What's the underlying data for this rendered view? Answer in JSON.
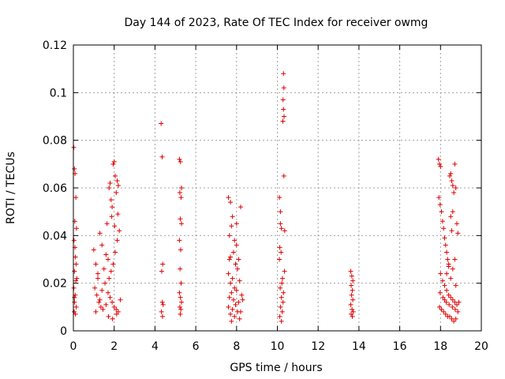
{
  "chart_data": {
    "type": "scatter",
    "title": "Day 144 of 2023, Rate Of TEC Index for receiver owmg",
    "xlabel": "GPS time / hours",
    "ylabel": "ROTI / TECUs",
    "xlim": [
      0,
      20
    ],
    "ylim": [
      0,
      0.12
    ],
    "xticks": [
      "0",
      "2",
      "4",
      "6",
      "8",
      "10",
      "12",
      "14",
      "16",
      "18",
      "20"
    ],
    "yticks": [
      "0",
      "0.02",
      "0.04",
      "0.06",
      "0.08",
      "0.1",
      "0.12"
    ],
    "grid": true,
    "marker": "+",
    "color": "#e00000",
    "series": [
      {
        "values": [
          [
            0.02,
            0.077
          ],
          [
            0.05,
            0.068
          ],
          [
            0.08,
            0.066
          ],
          [
            0.12,
            0.056
          ],
          [
            0.07,
            0.046
          ],
          [
            0.15,
            0.043
          ],
          [
            0.03,
            0.038
          ],
          [
            0.1,
            0.031
          ],
          [
            0.05,
            0.025
          ],
          [
            0.12,
            0.021
          ],
          [
            0.02,
            0.018
          ],
          [
            0.09,
            0.015
          ],
          [
            0.06,
            0.012
          ],
          [
            0.14,
            0.01
          ],
          [
            0.04,
            0.008
          ],
          [
            0.1,
            0.007
          ],
          [
            0.17,
            0.022
          ],
          [
            0.08,
            0.035
          ],
          [
            0.13,
            0.028
          ],
          [
            0.05,
            0.014
          ],
          [
            1.0,
            0.034
          ],
          [
            1.1,
            0.028
          ],
          [
            1.2,
            0.022
          ],
          [
            1.3,
            0.041
          ],
          [
            1.4,
            0.036
          ],
          [
            1.05,
            0.018
          ],
          [
            1.15,
            0.015
          ],
          [
            1.25,
            0.012
          ],
          [
            1.35,
            0.01
          ],
          [
            1.45,
            0.009
          ],
          [
            1.1,
            0.008
          ],
          [
            1.3,
            0.013
          ],
          [
            1.5,
            0.026
          ],
          [
            1.55,
            0.02
          ],
          [
            1.2,
            0.024
          ],
          [
            1.4,
            0.017
          ],
          [
            1.6,
            0.032
          ],
          [
            1.65,
            0.045
          ],
          [
            1.7,
            0.03
          ],
          [
            1.75,
            0.06
          ],
          [
            1.8,
            0.062
          ],
          [
            1.85,
            0.055
          ],
          [
            1.9,
            0.052
          ],
          [
            1.95,
            0.07
          ],
          [
            2.0,
            0.071
          ],
          [
            2.05,
            0.065
          ],
          [
            2.1,
            0.058
          ],
          [
            2.15,
            0.063
          ],
          [
            2.2,
            0.061
          ],
          [
            1.7,
            0.016
          ],
          [
            1.8,
            0.014
          ],
          [
            1.9,
            0.012
          ],
          [
            2.0,
            0.01
          ],
          [
            2.1,
            0.009
          ],
          [
            2.2,
            0.008
          ],
          [
            1.75,
            0.022
          ],
          [
            1.85,
            0.025
          ],
          [
            1.95,
            0.028
          ],
          [
            2.05,
            0.033
          ],
          [
            2.15,
            0.038
          ],
          [
            2.25,
            0.042
          ],
          [
            1.72,
            0.006
          ],
          [
            1.92,
            0.005
          ],
          [
            2.12,
            0.007
          ],
          [
            1.6,
            0.011
          ],
          [
            2.3,
            0.013
          ],
          [
            1.88,
            0.048
          ],
          [
            2.02,
            0.044
          ],
          [
            2.18,
            0.049
          ],
          [
            4.3,
            0.087
          ],
          [
            4.35,
            0.073
          ],
          [
            4.38,
            0.028
          ],
          [
            4.33,
            0.025
          ],
          [
            4.36,
            0.012
          ],
          [
            4.4,
            0.011
          ],
          [
            4.32,
            0.008
          ],
          [
            4.37,
            0.006
          ],
          [
            5.2,
            0.072
          ],
          [
            5.25,
            0.071
          ],
          [
            5.3,
            0.06
          ],
          [
            5.22,
            0.058
          ],
          [
            5.28,
            0.056
          ],
          [
            5.24,
            0.047
          ],
          [
            5.3,
            0.045
          ],
          [
            5.2,
            0.038
          ],
          [
            5.26,
            0.034
          ],
          [
            5.23,
            0.026
          ],
          [
            5.28,
            0.02
          ],
          [
            5.2,
            0.016
          ],
          [
            5.25,
            0.014
          ],
          [
            5.3,
            0.012
          ],
          [
            5.22,
            0.01
          ],
          [
            5.27,
            0.009
          ],
          [
            5.24,
            0.007
          ],
          [
            7.6,
            0.056
          ],
          [
            7.7,
            0.054
          ],
          [
            7.8,
            0.048
          ],
          [
            7.75,
            0.044
          ],
          [
            7.65,
            0.04
          ],
          [
            7.9,
            0.038
          ],
          [
            8.0,
            0.036
          ],
          [
            7.85,
            0.033
          ],
          [
            7.7,
            0.031
          ],
          [
            8.1,
            0.03
          ],
          [
            8.2,
            0.052
          ],
          [
            7.95,
            0.028
          ],
          [
            8.05,
            0.026
          ],
          [
            7.6,
            0.024
          ],
          [
            7.8,
            0.022
          ],
          [
            8.15,
            0.021
          ],
          [
            7.7,
            0.02
          ],
          [
            7.9,
            0.018
          ],
          [
            8.0,
            0.017
          ],
          [
            7.75,
            0.016
          ],
          [
            7.65,
            0.014
          ],
          [
            7.85,
            0.013
          ],
          [
            8.1,
            0.012
          ],
          [
            7.95,
            0.011
          ],
          [
            7.6,
            0.01
          ],
          [
            7.8,
            0.009
          ],
          [
            8.05,
            0.008
          ],
          [
            8.2,
            0.008
          ],
          [
            7.7,
            0.007
          ],
          [
            7.9,
            0.006
          ],
          [
            8.15,
            0.005
          ],
          [
            7.75,
            0.004
          ],
          [
            8.25,
            0.015
          ],
          [
            8.3,
            0.013
          ],
          [
            7.65,
            0.03
          ],
          [
            8.0,
            0.045
          ]
        ]
      },
      {
        "values": [
          [
            10.1,
            0.056
          ],
          [
            10.15,
            0.045
          ],
          [
            10.2,
            0.043
          ],
          [
            10.12,
            0.035
          ],
          [
            10.18,
            0.033
          ],
          [
            10.1,
            0.03
          ],
          [
            10.25,
            0.022
          ],
          [
            10.22,
            0.02
          ],
          [
            10.14,
            0.018
          ],
          [
            10.3,
            0.016
          ],
          [
            10.2,
            0.014
          ],
          [
            10.28,
            0.012
          ],
          [
            10.16,
            0.01
          ],
          [
            10.24,
            0.008
          ],
          [
            10.12,
            0.006
          ],
          [
            10.2,
            0.004
          ],
          [
            10.35,
            0.025
          ],
          [
            10.32,
            0.065
          ],
          [
            10.3,
            0.108
          ],
          [
            10.32,
            0.102
          ],
          [
            10.28,
            0.097
          ],
          [
            10.3,
            0.093
          ],
          [
            10.33,
            0.09
          ],
          [
            10.27,
            0.088
          ],
          [
            10.36,
            0.042
          ],
          [
            10.15,
            0.05
          ],
          [
            13.6,
            0.025
          ],
          [
            13.65,
            0.023
          ],
          [
            13.7,
            0.021
          ],
          [
            13.62,
            0.019
          ],
          [
            13.68,
            0.017
          ],
          [
            13.64,
            0.015
          ],
          [
            13.7,
            0.013
          ],
          [
            13.6,
            0.011
          ],
          [
            13.66,
            0.009
          ],
          [
            13.72,
            0.008
          ],
          [
            13.62,
            0.007
          ],
          [
            13.68,
            0.006
          ],
          [
            17.9,
            0.072
          ],
          [
            17.95,
            0.07
          ],
          [
            18.0,
            0.069
          ],
          [
            17.92,
            0.056
          ],
          [
            17.98,
            0.053
          ],
          [
            18.05,
            0.05
          ],
          [
            18.1,
            0.046
          ],
          [
            18.15,
            0.043
          ],
          [
            18.2,
            0.039
          ],
          [
            18.25,
            0.036
          ],
          [
            18.3,
            0.033
          ],
          [
            18.35,
            0.03
          ],
          [
            18.4,
            0.027
          ],
          [
            18.45,
            0.065
          ],
          [
            18.5,
            0.066
          ],
          [
            18.55,
            0.063
          ],
          [
            18.6,
            0.061
          ],
          [
            18.65,
            0.058
          ],
          [
            18.7,
            0.07
          ],
          [
            18.75,
            0.06
          ],
          [
            18.8,
            0.045
          ],
          [
            18.85,
            0.041
          ],
          [
            18.6,
            0.05
          ],
          [
            18.5,
            0.048
          ],
          [
            18.55,
            0.042
          ],
          [
            18.0,
            0.024
          ],
          [
            18.1,
            0.021
          ],
          [
            18.2,
            0.019
          ],
          [
            18.3,
            0.017
          ],
          [
            18.4,
            0.015
          ],
          [
            18.5,
            0.014
          ],
          [
            18.6,
            0.013
          ],
          [
            18.7,
            0.012
          ],
          [
            18.8,
            0.011
          ],
          [
            17.95,
            0.01
          ],
          [
            18.05,
            0.009
          ],
          [
            18.15,
            0.008
          ],
          [
            18.25,
            0.007
          ],
          [
            18.35,
            0.006
          ],
          [
            18.45,
            0.006
          ],
          [
            18.55,
            0.005
          ],
          [
            18.65,
            0.004
          ],
          [
            18.75,
            0.005
          ],
          [
            18.85,
            0.008
          ],
          [
            18.9,
            0.012
          ],
          [
            17.98,
            0.016
          ],
          [
            18.12,
            0.014
          ],
          [
            18.28,
            0.012
          ],
          [
            18.42,
            0.011
          ],
          [
            18.58,
            0.01
          ],
          [
            18.72,
            0.009
          ],
          [
            18.5,
            0.022
          ],
          [
            18.6,
            0.026
          ],
          [
            18.7,
            0.03
          ],
          [
            18.4,
            0.028
          ],
          [
            18.3,
            0.024
          ],
          [
            18.75,
            0.019
          ],
          [
            18.2,
            0.013
          ]
        ]
      }
    ]
  }
}
